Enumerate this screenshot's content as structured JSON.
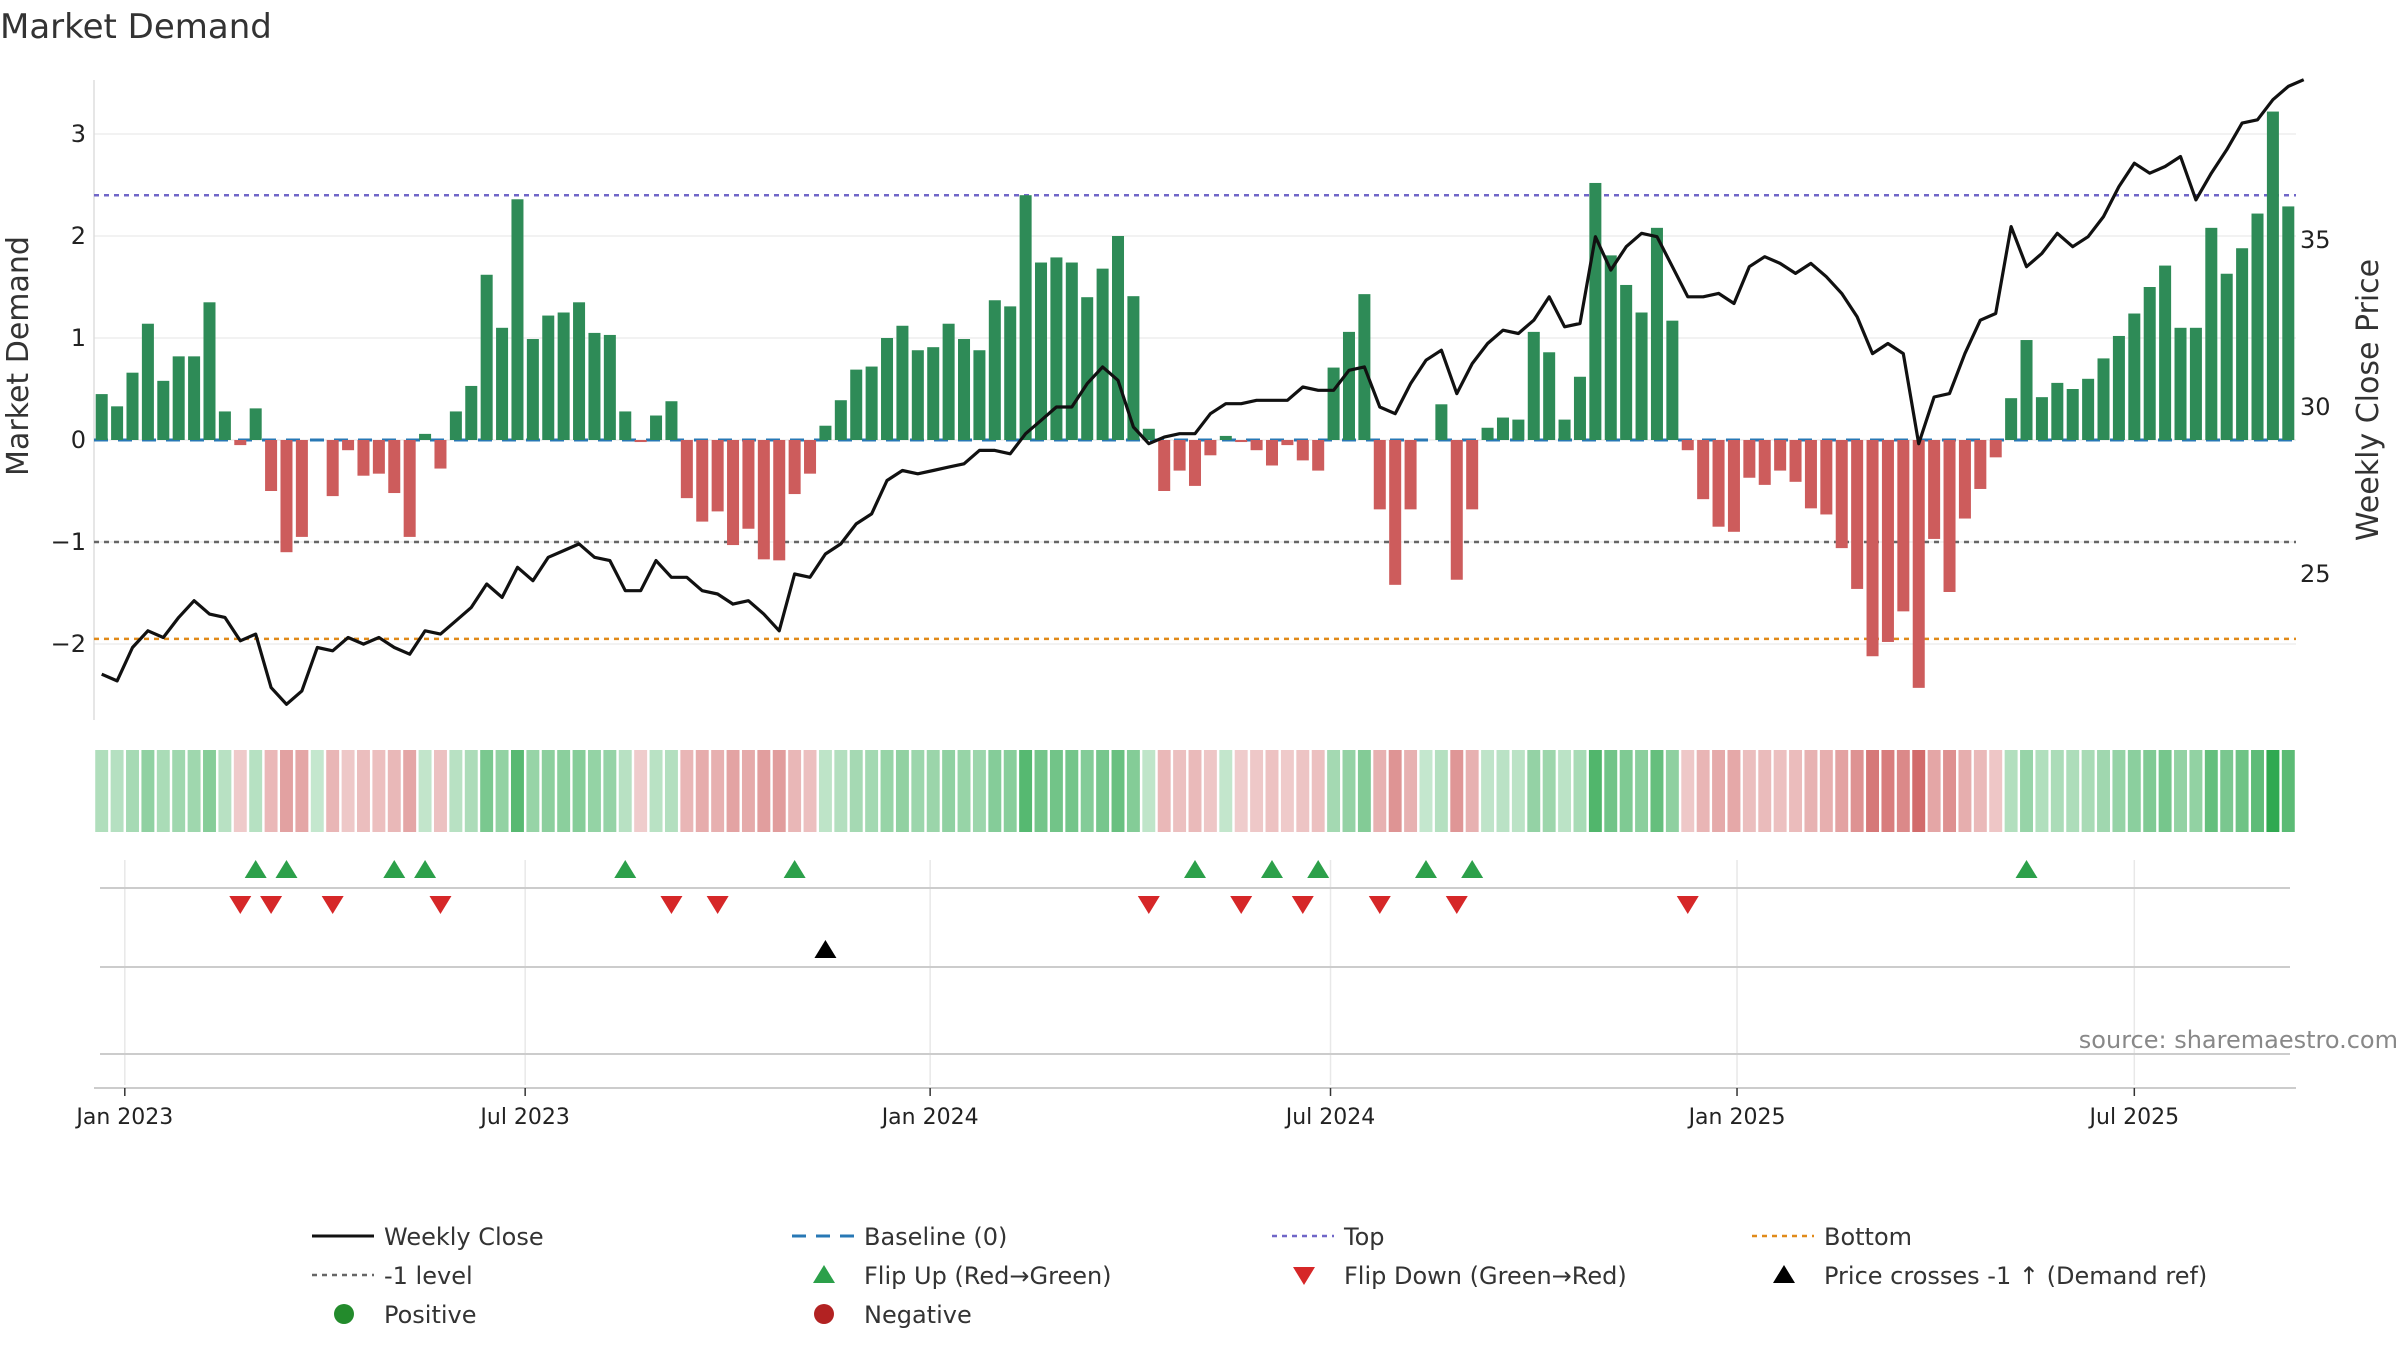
{
  "chart_data": {
    "type": "bar",
    "title": "Market Demand",
    "ylabel": "Market Demand",
    "y2label": "Weekly Close Price",
    "source": "source: sharemaestro.com",
    "ylim": [
      -2.75,
      3.6
    ],
    "y2lim": [
      20.5,
      40.5
    ],
    "yticks": [
      {
        "value": 3,
        "label": "3"
      },
      {
        "value": 2,
        "label": "2"
      },
      {
        "value": 1,
        "label": "1"
      },
      {
        "value": 0,
        "label": "0"
      },
      {
        "value": -1,
        "label": "−1"
      },
      {
        "value": -2,
        "label": "−2"
      }
    ],
    "y2ticks": [
      {
        "value": 35,
        "label": "35"
      },
      {
        "value": 30,
        "label": "30"
      },
      {
        "value": 25,
        "label": "25"
      }
    ],
    "xticks": [
      {
        "week": 2,
        "label": "Jan 2023"
      },
      {
        "week": 28,
        "label": "Jul 2023"
      },
      {
        "week": 54.3,
        "label": "Jan 2024"
      },
      {
        "week": 80.3,
        "label": "Jul 2024"
      },
      {
        "week": 106.7,
        "label": "Jan 2025"
      },
      {
        "week": 132.5,
        "label": "Jul 2025"
      }
    ],
    "levels": {
      "top": 2.4,
      "minus_one": -1,
      "bottom": -1.95,
      "baseline": 0
    },
    "demand": [
      0.45,
      0.33,
      0.66,
      1.14,
      0.58,
      0.82,
      0.82,
      1.35,
      0.28,
      -0.05,
      0.31,
      -0.5,
      -1.1,
      -0.95,
      0,
      -0.55,
      -0.1,
      -0.35,
      -0.33,
      -0.52,
      -0.95,
      0.06,
      -0.28,
      0.28,
      0.53,
      1.62,
      1.1,
      2.36,
      0.99,
      1.22,
      1.25,
      1.35,
      1.05,
      1.03,
      0.28,
      -0.02,
      0.24,
      0.38,
      -0.57,
      -0.8,
      -0.7,
      -1.03,
      -0.87,
      -1.17,
      -1.18,
      -0.53,
      -0.33,
      0.14,
      0.39,
      0.69,
      0.72,
      1.0,
      1.12,
      0.88,
      0.91,
      1.14,
      0.99,
      0.88,
      1.37,
      1.31,
      2.4,
      1.74,
      1.79,
      1.74,
      1.4,
      1.68,
      2.0,
      1.41,
      0.11,
      -0.5,
      -0.3,
      -0.45,
      -0.15,
      0.04,
      -0.02,
      -0.1,
      -0.25,
      -0.05,
      -0.2,
      -0.3,
      0.71,
      1.06,
      1.43,
      -0.68,
      -1.42,
      -0.68,
      0,
      0.35,
      -1.37,
      -0.68,
      0.12,
      0.22,
      0.2,
      1.06,
      0.86,
      0.2,
      0.62,
      2.52,
      1.81,
      1.52,
      1.25,
      2.08,
      1.17,
      -0.1,
      -0.58,
      -0.85,
      -0.9,
      -0.37,
      -0.44,
      -0.3,
      -0.41,
      -0.67,
      -0.73,
      -1.06,
      -1.46,
      -2.12,
      -1.98,
      -1.68,
      -2.43,
      -0.97,
      -1.49,
      -0.77,
      -0.48,
      -0.17,
      0.41,
      0.98,
      0.42,
      0.56,
      0.5,
      0.6,
      0.8,
      1.02,
      1.24,
      1.5,
      1.71,
      1.1,
      1.1,
      2.08,
      1.63,
      1.88,
      2.22,
      3.22,
      2.29
    ],
    "weekly_close": [
      22.0,
      21.8,
      22.8,
      23.3,
      23.1,
      23.7,
      24.2,
      23.8,
      23.7,
      23.0,
      23.2,
      21.6,
      21.1,
      21.5,
      22.8,
      22.7,
      23.1,
      22.9,
      23.1,
      22.8,
      22.6,
      23.3,
      23.2,
      23.6,
      24.0,
      24.7,
      24.3,
      25.2,
      24.8,
      25.5,
      25.7,
      25.9,
      25.5,
      25.4,
      24.5,
      24.5,
      25.4,
      24.9,
      24.9,
      24.5,
      24.4,
      24.1,
      24.2,
      23.8,
      23.3,
      25.0,
      24.9,
      25.6,
      25.9,
      26.5,
      26.8,
      27.8,
      28.1,
      28.0,
      28.1,
      28.2,
      28.3,
      28.7,
      28.7,
      28.6,
      29.2,
      29.6,
      30.0,
      30.0,
      30.7,
      31.2,
      30.8,
      29.4,
      28.9,
      29.1,
      29.2,
      29.2,
      29.8,
      30.1,
      30.1,
      30.2,
      30.2,
      30.2,
      30.6,
      30.5,
      30.5,
      31.1,
      31.2,
      30.0,
      29.8,
      30.7,
      31.4,
      31.7,
      30.4,
      31.3,
      31.9,
      32.3,
      32.2,
      32.6,
      33.3,
      32.4,
      32.5,
      35.1,
      34.1,
      34.8,
      35.2,
      35.1,
      34.2,
      33.3,
      33.3,
      33.4,
      33.1,
      34.2,
      34.5,
      34.3,
      34.0,
      34.3,
      33.9,
      33.4,
      32.7,
      31.6,
      31.9,
      31.6,
      28.9,
      30.3,
      30.4,
      31.6,
      32.6,
      32.8,
      35.4,
      34.2,
      34.6,
      35.2,
      34.8,
      35.1,
      35.7,
      36.6,
      37.3,
      37.0,
      37.2,
      37.5,
      36.2,
      37.0,
      37.7,
      38.5,
      38.6,
      39.2,
      39.6,
      39.8
    ],
    "flip_up_weeks": [
      10,
      12,
      19,
      21,
      34,
      45,
      71,
      76,
      79,
      86,
      89,
      125
    ],
    "flip_down_weeks": [
      9,
      11,
      15,
      22,
      37,
      40,
      68,
      74,
      78,
      83,
      88,
      103
    ],
    "price_cross_weeks": [
      47
    ],
    "legend": [
      {
        "key": "weekly_close",
        "label": "Weekly Close",
        "marker": "solid-line",
        "color": "#111111"
      },
      {
        "key": "baseline",
        "label": "Baseline (0)",
        "marker": "dashed-line",
        "color": "#2878b5"
      },
      {
        "key": "top",
        "label": "Top",
        "marker": "dotted-line",
        "color": "#7066c8"
      },
      {
        "key": "bottom",
        "label": "Bottom",
        "marker": "dotted-line",
        "color": "#e08a1a"
      },
      {
        "key": "minus_one",
        "label": "-1 level",
        "marker": "dotted-line",
        "color": "#666666"
      },
      {
        "key": "flip_up",
        "label": "Flip Up (Red→Green)",
        "marker": "triangle-up",
        "color": "#2ca04a"
      },
      {
        "key": "flip_down",
        "label": "Flip Down (Green→Red)",
        "marker": "triangle-down",
        "color": "#d62728"
      },
      {
        "key": "price_cross",
        "label": "Price crosses -1 ↑ (Demand ref)",
        "marker": "triangle-up",
        "color": "#000000"
      },
      {
        "key": "positive",
        "label": "Positive",
        "marker": "circle",
        "color": "#238b2c"
      },
      {
        "key": "negative",
        "label": "Negative",
        "marker": "circle",
        "color": "#b22222"
      }
    ],
    "colors": {
      "positive_bar": "#2e8b57",
      "negative_bar": "#cd5c5c",
      "top_line": "#7066c8",
      "bottom_line": "#e08a1a",
      "minus_one_line": "#666666",
      "baseline": "#2878b5",
      "close_line": "#111111",
      "flip_up": "#2ca04a",
      "flip_down": "#d62728",
      "price_cross": "#000000",
      "strip_positive": "#2ea84f",
      "strip_negative": "#c84a4a"
    }
  }
}
